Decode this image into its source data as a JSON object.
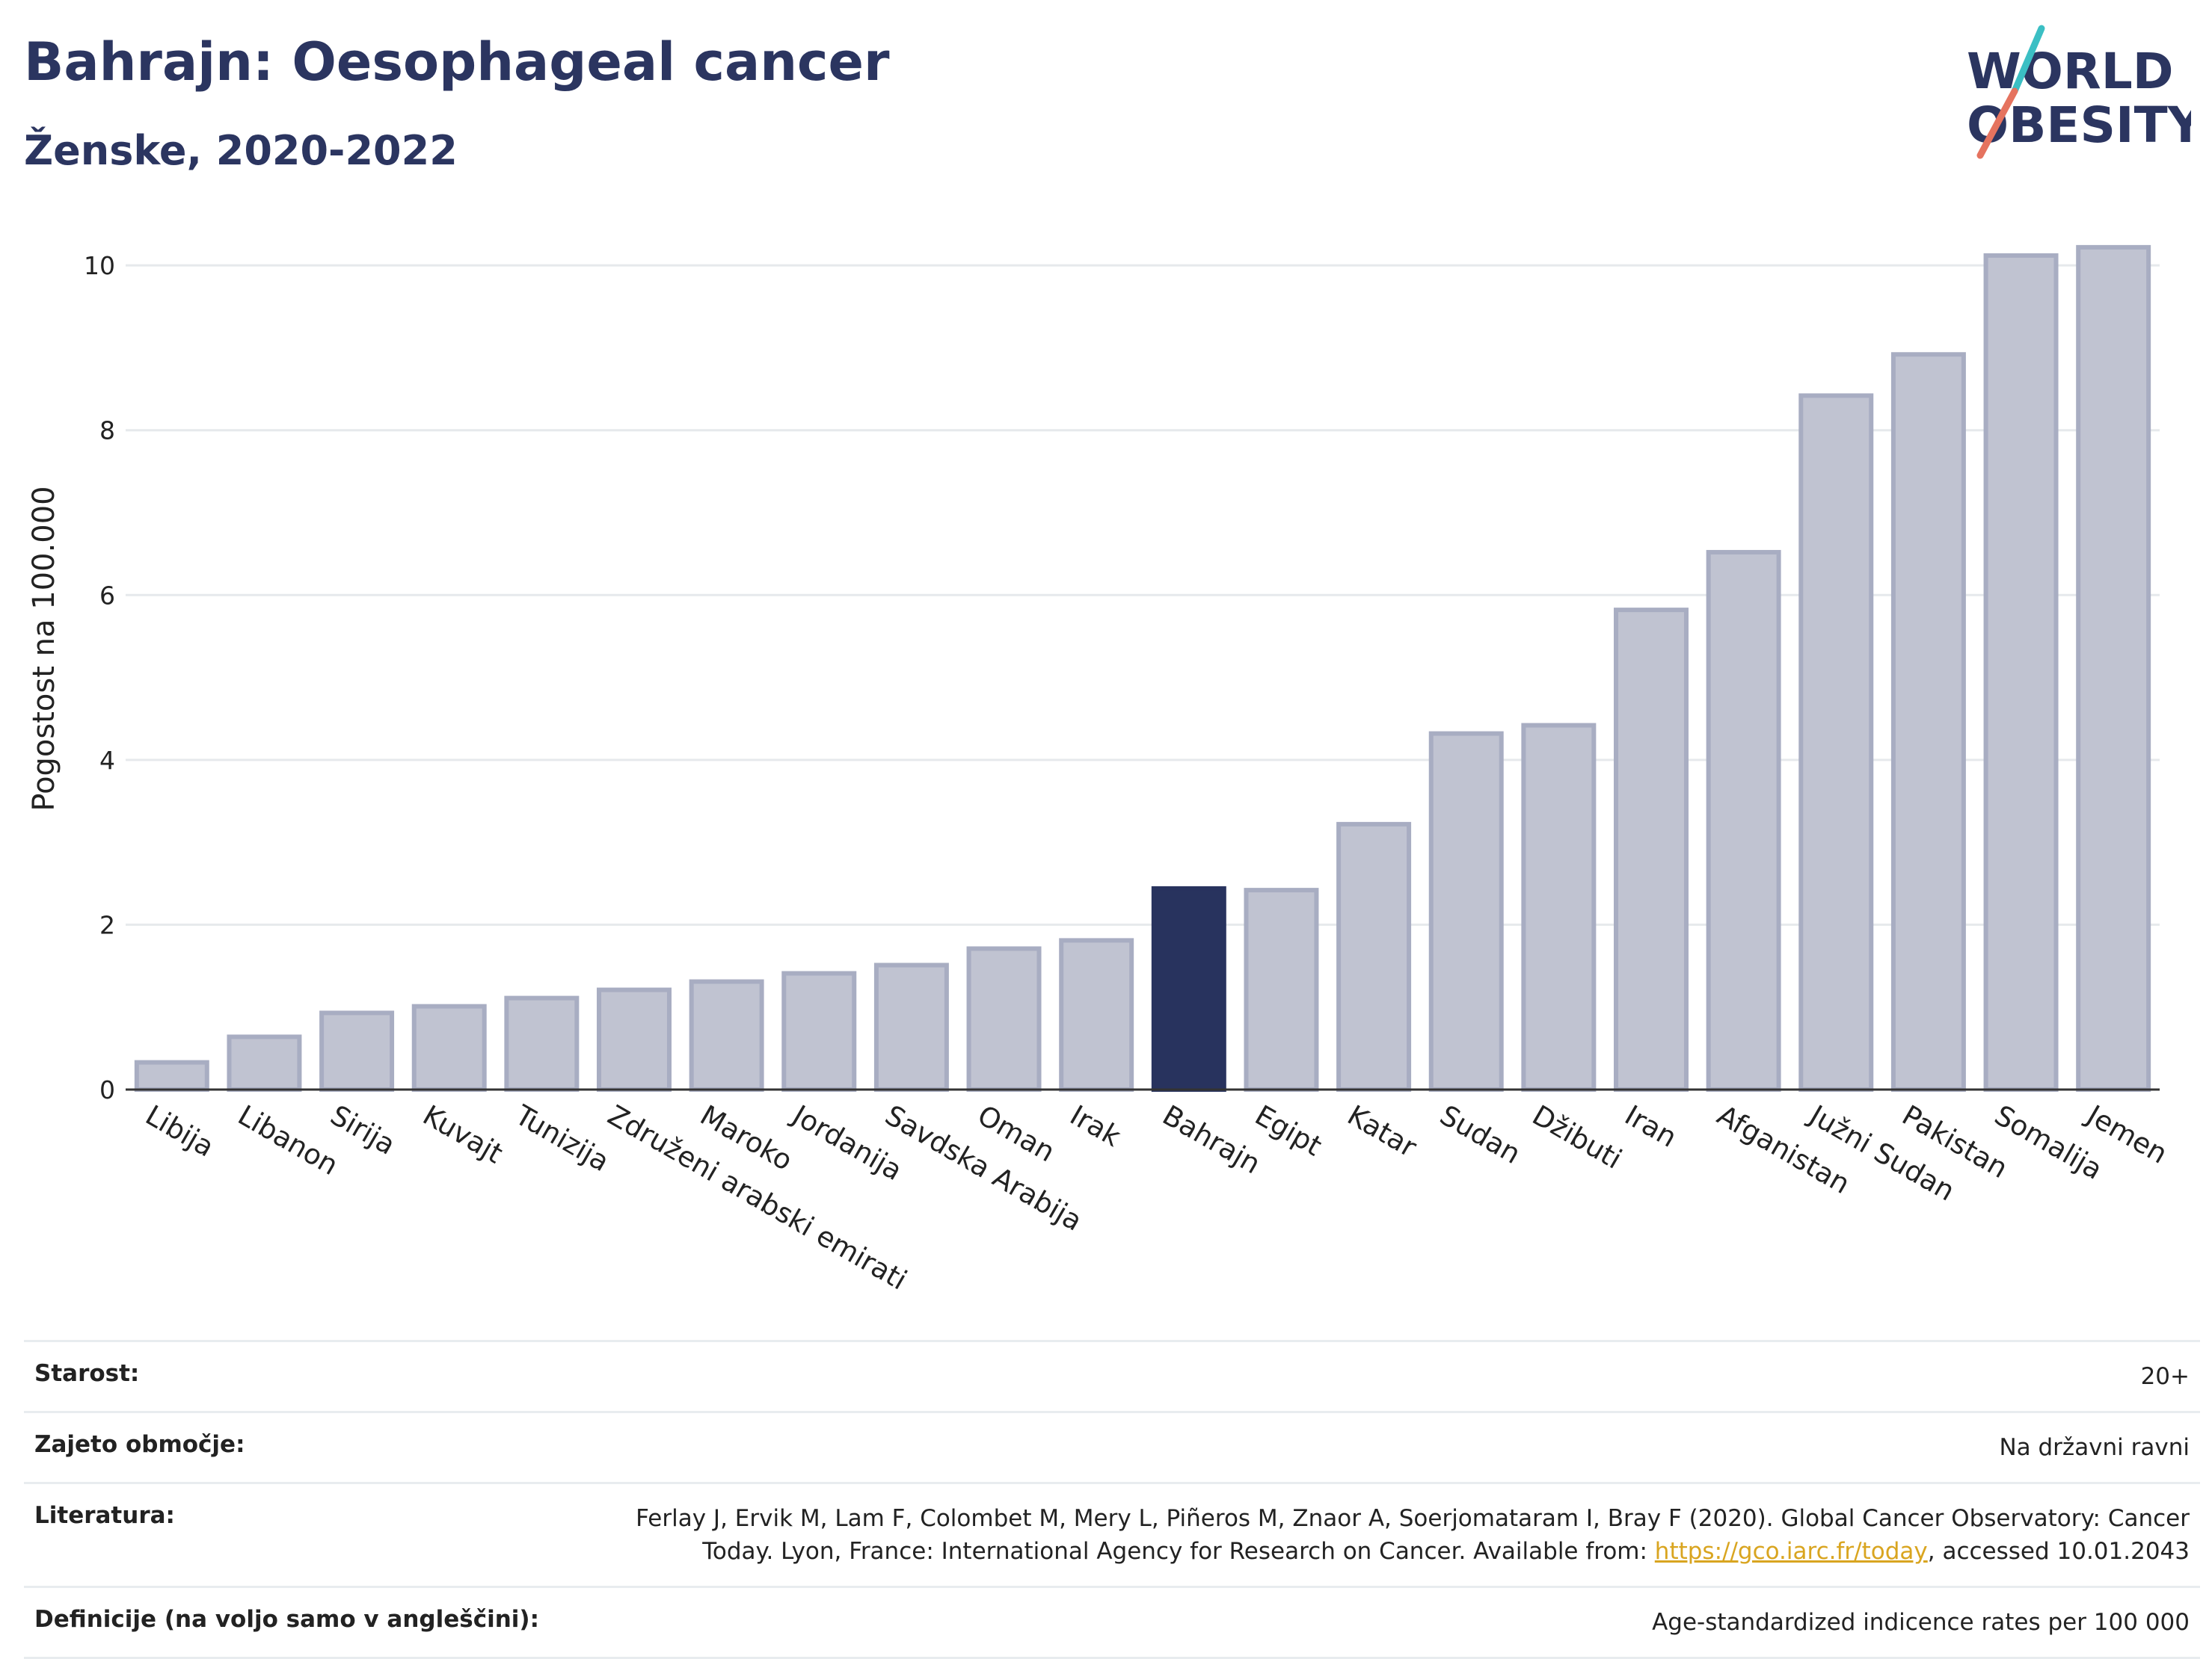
{
  "header": {
    "title": "Bahrajn: Oesophageal cancer",
    "subtitle": "Ženske, 2020-2022"
  },
  "logo": {
    "line1": "WORLD",
    "line2": "OBESITY",
    "colors": {
      "text": "#2b3560",
      "slash_top": "#3bbfc4",
      "slash_bottom": "#e5735f"
    }
  },
  "colors": {
    "bar": "#c0c3d1",
    "bar_border": "#a8adc2",
    "highlight": "#28335e",
    "grid": "#e6e9ec",
    "axis": "#333333"
  },
  "chart_data": {
    "type": "bar",
    "ylabel": "Pogostost na 100.000",
    "ylim": [
      0,
      10.5
    ],
    "yticks": [
      0,
      2,
      4,
      6,
      8,
      10
    ],
    "grid": true,
    "highlight_category": "Bahrajn",
    "categories": [
      "Libija",
      "Libanon",
      "Sirija",
      "Kuvajt",
      "Tunizija",
      "Združeni arabski emirati",
      "Maroko",
      "Jordanija",
      "Savdska Arabija",
      "Oman",
      "Irak",
      "Bahrajn",
      "Egipt",
      "Katar",
      "Sudan",
      "Džibuti",
      "Iran",
      "Afganistan",
      "Južni Sudan",
      "Pakistan",
      "Somalija",
      "Jemen"
    ],
    "values": [
      0.33,
      0.64,
      0.93,
      1.01,
      1.11,
      1.21,
      1.31,
      1.41,
      1.51,
      1.71,
      1.81,
      2.44,
      2.42,
      3.22,
      4.32,
      4.42,
      5.82,
      6.52,
      8.42,
      8.92,
      10.12,
      10.22
    ]
  },
  "info": [
    {
      "key": "Starost:",
      "value": "20+"
    },
    {
      "key": "Zajeto območje:",
      "value": "Na državni ravni"
    },
    {
      "key": "Literatura:",
      "value_line1": "Ferlay J, Ervik M, Lam F, Colombet M, Mery L, Piñeros M, Znaor A, Soerjomataram I, Bray F (2020). Global Cancer Observatory: Cancer",
      "value_line2_pre": "Today. Lyon, France: International Agency for Research on Cancer. Available from: ",
      "link": "https://gco.iarc.fr/today",
      "value_line2_post": ", accessed 10.01.2043"
    },
    {
      "key": "Definicije (na voljo samo v angleščini):",
      "value": "Age-standardized indicence rates per 100 000"
    }
  ]
}
